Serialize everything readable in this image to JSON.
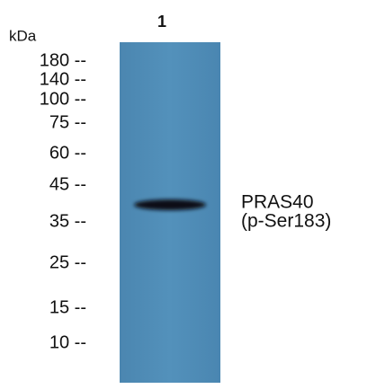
{
  "lane_label": "1",
  "unit_label": "kDa",
  "markers": [
    "180 --",
    "140 --",
    "100 --",
    "75 --",
    "60 --",
    "45 --",
    "35 --",
    "25 --",
    "15 --",
    "10 --"
  ],
  "band_label": {
    "name": "PRAS40",
    "site": "(p-Ser183)"
  }
}
